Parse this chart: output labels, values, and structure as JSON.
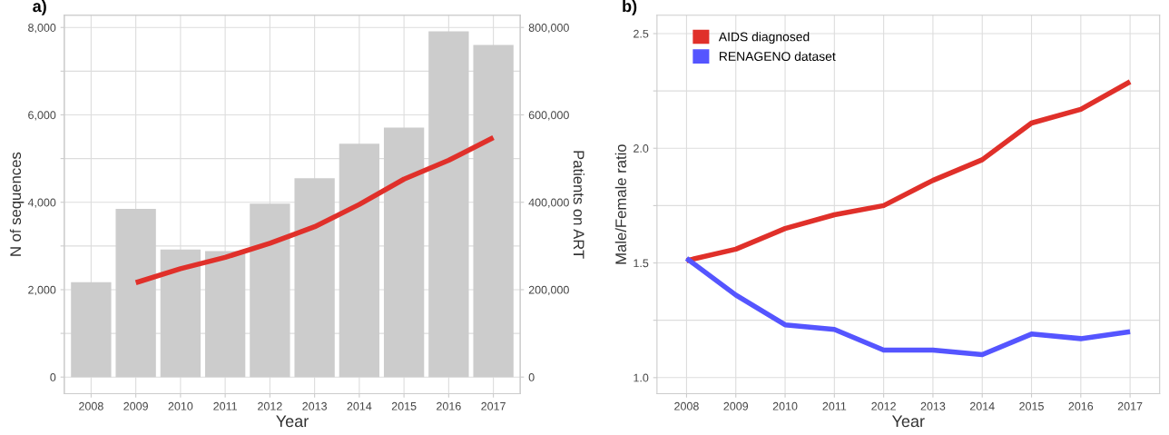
{
  "chart_data": [
    {
      "type": "bar",
      "title": "a)",
      "xlabel": "Year",
      "ylabel": "N of sequences",
      "y2label": "Patients on ART",
      "categories": [
        "2008",
        "2009",
        "2010",
        "2011",
        "2012",
        "2013",
        "2014",
        "2015",
        "2016",
        "2017"
      ],
      "series": [
        {
          "type": "bar",
          "color": "#cccccc",
          "values": [
            2170,
            3850,
            2920,
            2880,
            3970,
            4550,
            5340,
            5710,
            7910,
            7600
          ]
        },
        {
          "type": "line",
          "axis": "y2",
          "color": "#e0302a",
          "values": [
            null,
            216000,
            248000,
            274000,
            306000,
            344000,
            395000,
            453000,
            496000,
            548000
          ]
        }
      ],
      "ylim": [
        -380,
        8280
      ],
      "yticks": [
        {
          "value": 0,
          "label": "0"
        },
        {
          "value": 1000,
          "label": null
        },
        {
          "value": 2000,
          "label": "2,000"
        },
        {
          "value": 3000,
          "label": null
        },
        {
          "value": 4000,
          "label": "4,000"
        },
        {
          "value": 5000,
          "label": null
        },
        {
          "value": 6000,
          "label": "6,000"
        },
        {
          "value": 7000,
          "label": null
        },
        {
          "value": 8000,
          "label": "8,000"
        }
      ],
      "y2lim": [
        -38000,
        828000
      ],
      "y2ticks": [
        {
          "value": 0,
          "label": "0"
        },
        {
          "value": 200000,
          "label": "200,000"
        },
        {
          "value": 400000,
          "label": "400,000"
        },
        {
          "value": 600000,
          "label": "600,000"
        },
        {
          "value": 800000,
          "label": "800,000"
        }
      ],
      "grid": true,
      "legend": false
    },
    {
      "type": "line",
      "title": "b)",
      "xlabel": "Year",
      "ylabel": "Male/Female ratio",
      "categories": [
        "2008",
        "2009",
        "2010",
        "2011",
        "2012",
        "2013",
        "2014",
        "2015",
        "2016",
        "2017"
      ],
      "series": [
        {
          "name": "AIDS diagnosed",
          "color": "#e0302a",
          "values": [
            1.51,
            1.56,
            1.65,
            1.71,
            1.75,
            1.86,
            1.95,
            2.11,
            2.17,
            2.29
          ]
        },
        {
          "name": "RENAGENO dataset",
          "color": "#5555ff",
          "values": [
            1.52,
            1.36,
            1.23,
            1.21,
            1.12,
            1.12,
            1.1,
            1.19,
            1.17,
            1.2
          ]
        }
      ],
      "ylim": [
        0.93,
        2.58
      ],
      "yticks": [
        {
          "value": 1.0,
          "label": "1.0"
        },
        {
          "value": 1.25,
          "label": null
        },
        {
          "value": 1.5,
          "label": "1.5"
        },
        {
          "value": 1.75,
          "label": null
        },
        {
          "value": 2.0,
          "label": "2.0"
        },
        {
          "value": 2.25,
          "label": null
        },
        {
          "value": 2.5,
          "label": "2.5"
        }
      ],
      "grid": true,
      "legend": "top left"
    }
  ]
}
